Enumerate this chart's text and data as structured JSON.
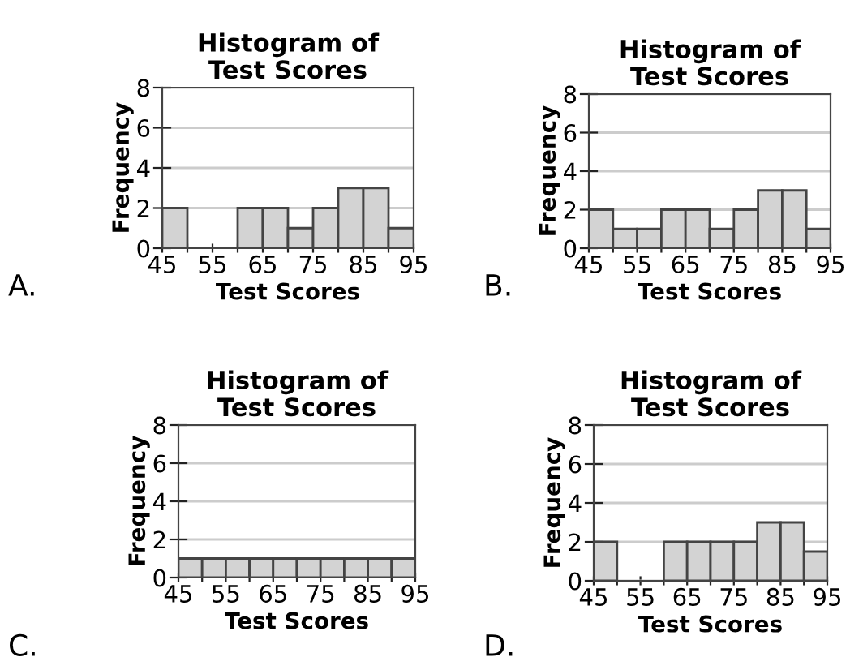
{
  "chart_data": [
    {
      "type": "histogram",
      "title": "Histogram of\nTest Scores",
      "xlabel": "Test Scores",
      "ylabel": "Frequency",
      "bins": [
        45,
        50,
        55,
        60,
        65,
        70,
        75,
        80,
        85,
        90,
        95
      ],
      "values": [
        2,
        0,
        0,
        2,
        2,
        1,
        2,
        3,
        3,
        1
      ],
      "color": "#d3d3d3",
      "xlim": [
        45,
        95
      ],
      "ylim": [
        0,
        8
      ],
      "xticks": [
        45,
        {
          "value": 50,
          "label": null
        },
        55,
        {
          "value": 60,
          "label": null
        },
        65,
        {
          "value": 70,
          "label": null
        },
        75,
        {
          "value": 80,
          "label": null
        },
        85,
        {
          "value": 90,
          "label": null
        },
        95
      ],
      "yticks": [
        0,
        2,
        4,
        6,
        8
      ],
      "grid": "y",
      "legend": false,
      "annotations": [
        "A."
      ]
    },
    {
      "type": "histogram",
      "title": "Histogram of\nTest Scores",
      "xlabel": "Test Scores",
      "ylabel": "Frequency",
      "bins": [
        45,
        50,
        55,
        60,
        65,
        70,
        75,
        80,
        85,
        90,
        95
      ],
      "values": [
        2,
        1,
        1,
        2,
        2,
        1,
        2,
        3,
        3,
        1
      ],
      "color": "#d3d3d3",
      "xlim": [
        45,
        95
      ],
      "ylim": [
        0,
        8
      ],
      "xticks": [
        45,
        {
          "value": 50,
          "label": null
        },
        55,
        {
          "value": 60,
          "label": null
        },
        65,
        {
          "value": 70,
          "label": null
        },
        75,
        {
          "value": 80,
          "label": null
        },
        85,
        {
          "value": 90,
          "label": null
        },
        95
      ],
      "yticks": [
        0,
        2,
        4,
        6,
        8
      ],
      "grid": "y",
      "legend": false,
      "annotations": [
        "B."
      ]
    },
    {
      "type": "histogram",
      "title": "Histogram of\nTest Scores",
      "xlabel": "Test Scores",
      "ylabel": "Frequency",
      "bins": [
        45,
        50,
        55,
        60,
        65,
        70,
        75,
        80,
        85,
        90,
        95
      ],
      "values": [
        1,
        1,
        1,
        1,
        1,
        1,
        1,
        1,
        1,
        1
      ],
      "color": "#d3d3d3",
      "xlim": [
        45,
        95
      ],
      "ylim": [
        0,
        8
      ],
      "xticks": [
        45,
        {
          "value": 50,
          "label": null
        },
        55,
        {
          "value": 60,
          "label": null
        },
        65,
        {
          "value": 70,
          "label": null
        },
        75,
        {
          "value": 80,
          "label": null
        },
        85,
        {
          "value": 90,
          "label": null
        },
        95
      ],
      "yticks": [
        0,
        2,
        4,
        6,
        8
      ],
      "grid": "y",
      "legend": false,
      "annotations": [
        "C."
      ]
    },
    {
      "type": "histogram",
      "title": "Histogram of\nTest Scores",
      "xlabel": "Test Scores",
      "ylabel": "Frequency",
      "bins": [
        45,
        50,
        55,
        60,
        65,
        70,
        75,
        80,
        85,
        90,
        95
      ],
      "values": [
        2,
        0,
        0,
        2,
        2,
        2,
        2,
        3,
        3,
        1.5
      ],
      "color": "#d3d3d3",
      "xlim": [
        45,
        95
      ],
      "ylim": [
        0,
        8
      ],
      "xticks": [
        45,
        {
          "value": 50,
          "label": null
        },
        55,
        {
          "value": 60,
          "label": null
        },
        65,
        {
          "value": 70,
          "label": null
        },
        75,
        {
          "value": 80,
          "label": null
        },
        85,
        {
          "value": 90,
          "label": null
        },
        95
      ],
      "yticks": [
        0,
        2,
        4,
        6,
        8
      ],
      "grid": "y",
      "legend": false,
      "annotations": [
        "D."
      ]
    }
  ]
}
